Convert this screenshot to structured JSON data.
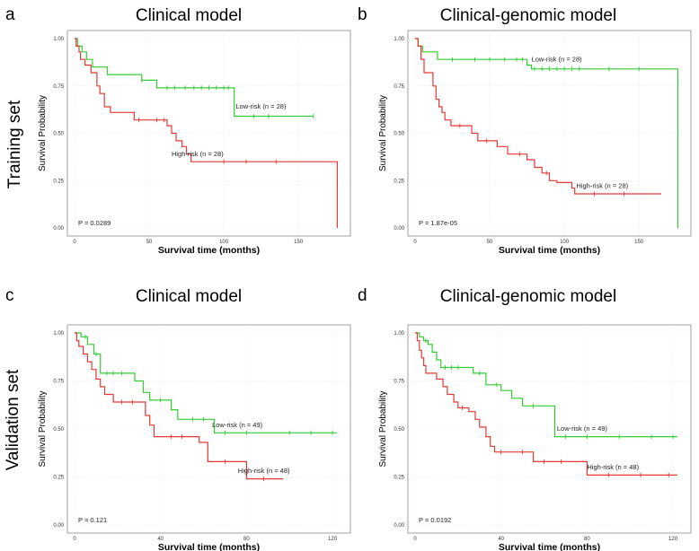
{
  "row_labels": {
    "training": "Training set",
    "validation": "Validation set"
  },
  "colors": {
    "low_risk": "#33cc33",
    "high_risk": "#e53935",
    "grid": "#e4e4e4",
    "frame": "#8a8a8a"
  },
  "chart_data": [
    {
      "type": "line",
      "panel": "a",
      "title": "Clinical model",
      "xlabel": "Survival time (months)",
      "ylabel": "Survival Probability",
      "xlim": [
        0,
        180
      ],
      "ylim": [
        0,
        1
      ],
      "xticks": [
        0,
        50,
        100,
        150
      ],
      "yticks": [
        "0.00",
        "0.25",
        "0.50",
        "0.75",
        "1.00"
      ],
      "pvalue": "P = 0.0289",
      "series": [
        {
          "name": "Low-risk",
          "label": "Low-risk (n = 28)",
          "steps": [
            [
              0,
              1.0
            ],
            [
              2,
              0.96
            ],
            [
              5,
              0.93
            ],
            [
              8,
              0.89
            ],
            [
              12,
              0.85
            ],
            [
              22,
              0.81
            ],
            [
              40,
              0.81
            ],
            [
              45,
              0.78
            ],
            [
              55,
              0.74
            ],
            [
              105,
              0.74
            ],
            [
              107,
              0.59
            ],
            [
              160,
              0.59
            ]
          ],
          "censor": [
            [
              45,
              0.78
            ],
            [
              62,
              0.74
            ],
            [
              67,
              0.74
            ],
            [
              74,
              0.74
            ],
            [
              80,
              0.74
            ],
            [
              85,
              0.74
            ],
            [
              90,
              0.74
            ],
            [
              95,
              0.74
            ],
            [
              100,
              0.74
            ],
            [
              103,
              0.74
            ],
            [
              120,
              0.59
            ],
            [
              130,
              0.59
            ],
            [
              160,
              0.59
            ]
          ]
        },
        {
          "name": "High-risk",
          "label": "High-risk (n = 28)",
          "steps": [
            [
              0,
              1.0
            ],
            [
              1,
              0.96
            ],
            [
              3,
              0.93
            ],
            [
              4,
              0.89
            ],
            [
              7,
              0.86
            ],
            [
              11,
              0.82
            ],
            [
              15,
              0.75
            ],
            [
              17,
              0.71
            ],
            [
              20,
              0.64
            ],
            [
              24,
              0.61
            ],
            [
              40,
              0.57
            ],
            [
              62,
              0.54
            ],
            [
              65,
              0.5
            ],
            [
              68,
              0.46
            ],
            [
              72,
              0.43
            ],
            [
              75,
              0.39
            ],
            [
              78,
              0.35
            ],
            [
              176,
              0.35
            ],
            [
              176,
              0.0
            ]
          ],
          "censor": [
            [
              43,
              0.57
            ],
            [
              55,
              0.57
            ],
            [
              60,
              0.57
            ],
            [
              100,
              0.35
            ],
            [
              115,
              0.35
            ],
            [
              135,
              0.35
            ]
          ]
        }
      ]
    },
    {
      "type": "line",
      "panel": "b",
      "title": "Clinical-genomic model",
      "xlabel": "Survival time (months)",
      "ylabel": "Survival Probability",
      "xlim": [
        0,
        180
      ],
      "ylim": [
        0,
        1
      ],
      "xticks": [
        0,
        50,
        100,
        150
      ],
      "yticks": [
        "0.00",
        "0.25",
        "0.50",
        "0.75",
        "1.00"
      ],
      "pvalue": "P = 1.87e-05",
      "series": [
        {
          "name": "Low-risk",
          "label": "Low-risk (n = 28)",
          "steps": [
            [
              0,
              1.0
            ],
            [
              2,
              0.96
            ],
            [
              5,
              0.93
            ],
            [
              15,
              0.89
            ],
            [
              75,
              0.86
            ],
            [
              78,
              0.84
            ],
            [
              176,
              0.84
            ],
            [
              176,
              0.0
            ]
          ],
          "censor": [
            [
              25,
              0.89
            ],
            [
              40,
              0.89
            ],
            [
              50,
              0.89
            ],
            [
              60,
              0.89
            ],
            [
              68,
              0.89
            ],
            [
              72,
              0.89
            ],
            [
              80,
              0.84
            ],
            [
              85,
              0.84
            ],
            [
              90,
              0.84
            ],
            [
              95,
              0.84
            ],
            [
              100,
              0.84
            ],
            [
              105,
              0.84
            ],
            [
              110,
              0.84
            ],
            [
              130,
              0.84
            ],
            [
              150,
              0.84
            ]
          ]
        },
        {
          "name": "High-risk",
          "label": "High-risk (n = 28)",
          "steps": [
            [
              0,
              1.0
            ],
            [
              2,
              0.96
            ],
            [
              4,
              0.89
            ],
            [
              6,
              0.82
            ],
            [
              12,
              0.75
            ],
            [
              14,
              0.68
            ],
            [
              16,
              0.64
            ],
            [
              18,
              0.61
            ],
            [
              20,
              0.57
            ],
            [
              24,
              0.54
            ],
            [
              38,
              0.5
            ],
            [
              42,
              0.46
            ],
            [
              55,
              0.43
            ],
            [
              62,
              0.39
            ],
            [
              75,
              0.36
            ],
            [
              80,
              0.32
            ],
            [
              85,
              0.29
            ],
            [
              90,
              0.25
            ],
            [
              95,
              0.24
            ],
            [
              105,
              0.21
            ],
            [
              107,
              0.18
            ],
            [
              165,
              0.18
            ]
          ],
          "censor": [
            [
              30,
              0.54
            ],
            [
              48,
              0.46
            ],
            [
              70,
              0.39
            ],
            [
              88,
              0.29
            ],
            [
              120,
              0.18
            ],
            [
              140,
              0.18
            ]
          ]
        }
      ]
    },
    {
      "type": "line",
      "panel": "c",
      "title": "Clinical model",
      "xlabel": "Survival time (months)",
      "ylabel": "Survival Probability",
      "xlim": [
        0,
        125
      ],
      "ylim": [
        0,
        1
      ],
      "xticks": [
        0,
        40,
        80,
        120
      ],
      "yticks": [
        "0.00",
        "0.25",
        "0.50",
        "0.75",
        "1.00"
      ],
      "pvalue": "P = 0.121",
      "series": [
        {
          "name": "Low-risk",
          "label": "Low-risk (n = 49)",
          "steps": [
            [
              0,
              1.0
            ],
            [
              3,
              0.98
            ],
            [
              6,
              0.94
            ],
            [
              9,
              0.89
            ],
            [
              12,
              0.79
            ],
            [
              26,
              0.79
            ],
            [
              28,
              0.75
            ],
            [
              32,
              0.69
            ],
            [
              35,
              0.65
            ],
            [
              45,
              0.6
            ],
            [
              48,
              0.55
            ],
            [
              65,
              0.48
            ],
            [
              122,
              0.48
            ]
          ],
          "censor": [
            [
              5,
              0.98
            ],
            [
              10,
              0.89
            ],
            [
              15,
              0.79
            ],
            [
              18,
              0.79
            ],
            [
              22,
              0.79
            ],
            [
              40,
              0.65
            ],
            [
              55,
              0.55
            ],
            [
              60,
              0.55
            ],
            [
              70,
              0.48
            ],
            [
              80,
              0.48
            ],
            [
              100,
              0.48
            ],
            [
              110,
              0.48
            ],
            [
              120,
              0.48
            ]
          ]
        },
        {
          "name": "High-risk",
          "label": "High-risk (n = 48)",
          "steps": [
            [
              0,
              1.0
            ],
            [
              1,
              0.96
            ],
            [
              2,
              0.93
            ],
            [
              4,
              0.89
            ],
            [
              6,
              0.85
            ],
            [
              8,
              0.81
            ],
            [
              10,
              0.76
            ],
            [
              12,
              0.72
            ],
            [
              14,
              0.68
            ],
            [
              18,
              0.64
            ],
            [
              30,
              0.64
            ],
            [
              33,
              0.57
            ],
            [
              35,
              0.52
            ],
            [
              37,
              0.46
            ],
            [
              58,
              0.43
            ],
            [
              62,
              0.33
            ],
            [
              80,
              0.24
            ],
            [
              97,
              0.24
            ]
          ],
          "censor": [
            [
              22,
              0.64
            ],
            [
              27,
              0.64
            ],
            [
              45,
              0.46
            ],
            [
              50,
              0.46
            ],
            [
              70,
              0.33
            ],
            [
              88,
              0.24
            ]
          ]
        }
      ]
    },
    {
      "type": "line",
      "panel": "d",
      "title": "Clinical-genomic model",
      "xlabel": "Survival time (months)",
      "ylabel": "Survival Probability",
      "xlim": [
        0,
        125
      ],
      "ylim": [
        0,
        1
      ],
      "xticks": [
        0,
        40,
        80,
        120
      ],
      "yticks": [
        "0.00",
        "0.25",
        "0.50",
        "0.75",
        "1.00"
      ],
      "pvalue": "P = 0.0192",
      "series": [
        {
          "name": "Low-risk",
          "label": "Low-risk (n = 49)",
          "steps": [
            [
              0,
              1.0
            ],
            [
              2,
              0.98
            ],
            [
              4,
              0.96
            ],
            [
              6,
              0.94
            ],
            [
              8,
              0.9
            ],
            [
              10,
              0.86
            ],
            [
              12,
              0.82
            ],
            [
              24,
              0.82
            ],
            [
              27,
              0.79
            ],
            [
              33,
              0.73
            ],
            [
              40,
              0.7
            ],
            [
              45,
              0.66
            ],
            [
              50,
              0.62
            ],
            [
              60,
              0.62
            ],
            [
              65,
              0.46
            ],
            [
              122,
              0.46
            ]
          ],
          "censor": [
            [
              5,
              0.96
            ],
            [
              14,
              0.82
            ],
            [
              17,
              0.82
            ],
            [
              20,
              0.82
            ],
            [
              30,
              0.79
            ],
            [
              38,
              0.73
            ],
            [
              55,
              0.62
            ],
            [
              70,
              0.46
            ],
            [
              80,
              0.46
            ],
            [
              95,
              0.46
            ],
            [
              110,
              0.46
            ],
            [
              120,
              0.46
            ]
          ]
        },
        {
          "name": "High-risk",
          "label": "High-risk (n = 48)",
          "steps": [
            [
              0,
              1.0
            ],
            [
              1,
              0.96
            ],
            [
              2,
              0.91
            ],
            [
              3,
              0.87
            ],
            [
              4,
              0.83
            ],
            [
              5,
              0.79
            ],
            [
              8,
              0.79
            ],
            [
              10,
              0.76
            ],
            [
              13,
              0.72
            ],
            [
              15,
              0.68
            ],
            [
              18,
              0.64
            ],
            [
              20,
              0.61
            ],
            [
              25,
              0.59
            ],
            [
              28,
              0.55
            ],
            [
              30,
              0.51
            ],
            [
              33,
              0.46
            ],
            [
              35,
              0.41
            ],
            [
              37,
              0.38
            ],
            [
              45,
              0.38
            ],
            [
              55,
              0.33
            ],
            [
              75,
              0.33
            ],
            [
              80,
              0.26
            ],
            [
              122,
              0.26
            ]
          ],
          "censor": [
            [
              22,
              0.61
            ],
            [
              40,
              0.38
            ],
            [
              50,
              0.38
            ],
            [
              60,
              0.33
            ],
            [
              68,
              0.33
            ],
            [
              90,
              0.26
            ],
            [
              105,
              0.26
            ],
            [
              118,
              0.26
            ]
          ]
        }
      ]
    }
  ]
}
